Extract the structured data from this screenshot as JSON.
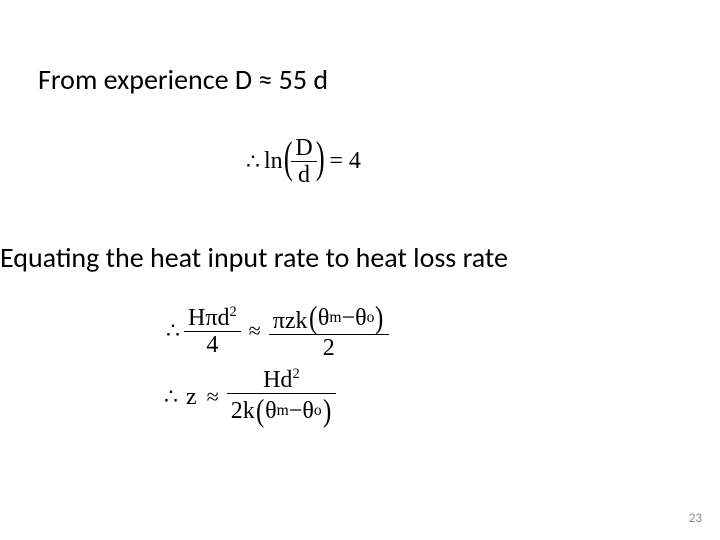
{
  "text": {
    "line1": "From experience D ≈ 55 d",
    "line2": "Equating the heat input rate to heat loss rate"
  },
  "eq1": {
    "therefore": "∴",
    "ln": "ln",
    "num": "D",
    "den": "d",
    "rhs": "= 4"
  },
  "eq2": {
    "therefore": "∴",
    "lhs_num": "Hπd",
    "lhs_num_sup": "2",
    "lhs_den": "4",
    "approx": "≈",
    "rhs_num_a": "πzk",
    "rhs_num_theta1": "θ",
    "rhs_num_sub1": "m",
    "rhs_num_minus": " − ",
    "rhs_num_theta2": "θ",
    "rhs_num_sub2": "o",
    "rhs_den": "2"
  },
  "eq3": {
    "therefore": "∴",
    "z": "z",
    "approx": "≈",
    "num_a": "Hd",
    "num_sup": "2",
    "den_a": "2k",
    "den_theta1": "θ",
    "den_sub1": "m",
    "den_minus": " − ",
    "den_theta2": "θ",
    "den_sub2": "o"
  },
  "pagenum": "23",
  "style": {
    "body_font": "Calibri",
    "math_font": "Times New Roman",
    "body_fontsize_pt": 21,
    "math_fontsize_pt": 18,
    "pagenum_fontsize_pt": 10,
    "pagenum_color": "#8a8a8a",
    "text_color": "#000000",
    "background": "#ffffff",
    "slide_w": 720,
    "slide_h": 540
  }
}
